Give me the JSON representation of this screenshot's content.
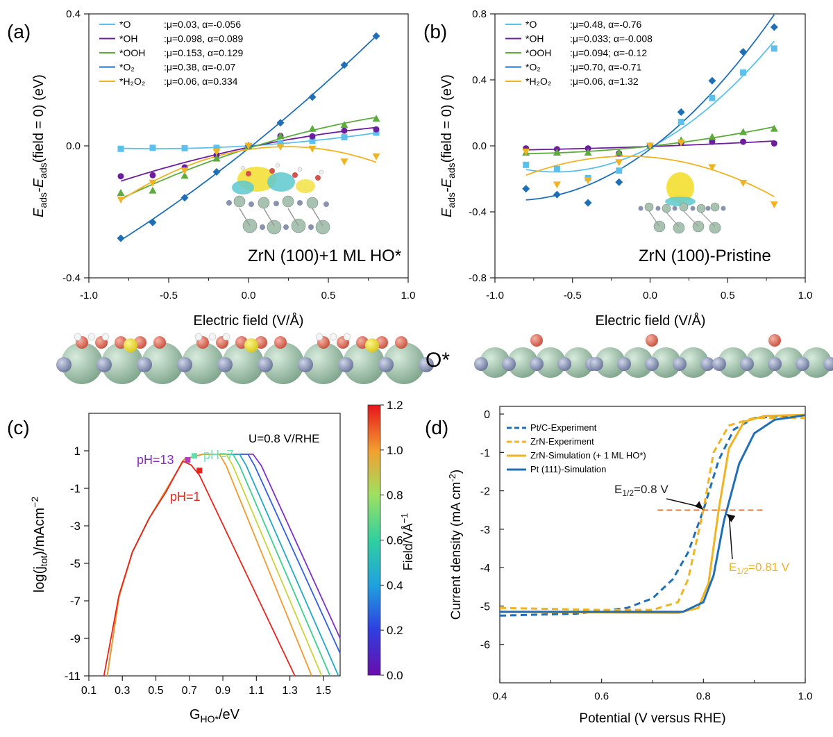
{
  "panels": {
    "a": {
      "letter": "(a)",
      "inset_label": "ZrN (100)+1 ML HO*",
      "xlabel": "Electric field (V/Å)",
      "ylabel_main": "E",
      "ylabel_sub1": "ads",
      "ylabel_mid": "-E",
      "ylabel_sub2": "ads",
      "ylabel_tail": "(field = 0) (eV)"
    },
    "b": {
      "letter": "(b)",
      "inset_label": "ZrN (100)-Pristine",
      "xlabel": "Electric field (V/Å)",
      "ylabel_main": "E",
      "ylabel_sub1": "ads",
      "ylabel_mid": "-E",
      "ylabel_sub2": "ads",
      "ylabel_tail": "(field = 0) (eV)"
    },
    "o_label": "O*",
    "c": {
      "letter": "(c)",
      "condition": "U=0.8 V/RHE",
      "xlabel": "G",
      "xlabel_sub": "HO*",
      "xlabel_tail": "/eV",
      "ylabel": "log(j",
      "ylabel_sub": "tot",
      "ylabel_tail": ")/mAcm",
      "ylabel_sup": "−2",
      "colorbar_label": "Field/VÅ",
      "colorbar_sup": "−1",
      "ph13": "pH=13",
      "ph7": "pH=7",
      "ph1": "pH=1"
    },
    "d": {
      "letter": "(d)",
      "xlabel": "Potential (V versus RHE)",
      "ylabel": "Current density (mA cm",
      "ylabel_sup": "-2",
      "ylabel_tail": ")",
      "ann1_pre": "E",
      "ann1_sub": "1/2",
      "ann1_tail": "=0.8 V",
      "ann2_pre": "E",
      "ann2_sub": "1/2",
      "ann2_tail": "=0.81 V"
    }
  },
  "chart_data": [
    {
      "id": "a",
      "type": "scatter",
      "xlabel": "Electric field (V/Å)",
      "ylabel": "Eads-Eads(field = 0) (eV)",
      "xlim": [
        -1.0,
        1.0
      ],
      "ylim": [
        -0.4,
        0.4
      ],
      "xticks": [
        -1.0,
        -0.5,
        0.0,
        0.5,
        1.0
      ],
      "yticks": [
        -0.4,
        0.0,
        0.4
      ],
      "x": [
        -0.8,
        -0.6,
        -0.4,
        -0.2,
        0.0,
        0.2,
        0.4,
        0.6,
        0.8
      ],
      "series": [
        {
          "name": "*O",
          "params": ":μ=0.03, α=-0.056",
          "color": "#5BC0EB",
          "marker": "square",
          "values": [
            -0.009,
            -0.006,
            -0.007,
            -0.006,
            0.0,
            0.007,
            0.015,
            0.026,
            0.04
          ]
        },
        {
          "name": "*OH",
          "params": ":μ=0.098, α=0.089",
          "color": "#6B1E9E",
          "marker": "circle",
          "values": [
            -0.092,
            -0.089,
            -0.065,
            -0.028,
            0.0,
            0.03,
            0.029,
            0.046,
            0.05
          ]
        },
        {
          "name": "*OOH",
          "params": ":μ=0.153, α=0.129",
          "color": "#5CAB3C",
          "marker": "triangle-up",
          "values": [
            -0.142,
            -0.135,
            -0.09,
            -0.038,
            0.0,
            0.03,
            0.052,
            0.064,
            0.083
          ]
        },
        {
          "name": "*O₂",
          "params": ":μ=0.38, α=-0.07",
          "color": "#1F6FB8",
          "marker": "diamond",
          "values": [
            -0.28,
            -0.232,
            -0.157,
            -0.079,
            0.0,
            0.07,
            0.148,
            0.245,
            0.333
          ]
        },
        {
          "name": "*H₂O₂",
          "params": ":μ=0.06, α=0.334",
          "color": "#F0B323",
          "marker": "triangle-down",
          "values": [
            -0.163,
            -0.112,
            -0.075,
            -0.018,
            0.0,
            -0.003,
            -0.009,
            -0.048,
            -0.032
          ]
        }
      ]
    },
    {
      "id": "b",
      "type": "scatter",
      "xlabel": "Electric field (V/Å)",
      "ylabel": "Eads-Eads(field = 0) (eV)",
      "xlim": [
        -1.0,
        1.0
      ],
      "ylim": [
        -0.8,
        0.8
      ],
      "xticks": [
        -1.0,
        -0.5,
        0.0,
        0.5,
        1.0
      ],
      "yticks": [
        -0.8,
        -0.4,
        0.0,
        0.4,
        0.8
      ],
      "x": [
        -0.8,
        -0.6,
        -0.4,
        -0.2,
        0.0,
        0.2,
        0.4,
        0.6,
        0.8
      ],
      "series": [
        {
          "name": "*O",
          "params": ":μ=0.48, α=-0.76",
          "color": "#5BC0EB",
          "marker": "square",
          "values": [
            -0.115,
            -0.14,
            -0.195,
            -0.15,
            0.0,
            0.145,
            0.29,
            0.445,
            0.59
          ]
        },
        {
          "name": "*OH",
          "params": ":μ=0.033; α=-0.008",
          "color": "#6B1E9E",
          "marker": "circle",
          "values": [
            -0.015,
            -0.02,
            -0.015,
            -0.045,
            0.0,
            0.02,
            0.025,
            0.025,
            0.015
          ]
        },
        {
          "name": "*OOH",
          "params": ":μ=0.094; α=-0.12",
          "color": "#5CAB3C",
          "marker": "triangle-up",
          "values": [
            -0.04,
            -0.04,
            -0.04,
            -0.04,
            0.0,
            0.035,
            0.055,
            0.085,
            0.105
          ]
        },
        {
          "name": "*O₂",
          "params": ":μ=0.70, α=-0.71",
          "color": "#1F6FB8",
          "marker": "diamond",
          "values": [
            -0.26,
            -0.295,
            -0.345,
            -0.22,
            0.0,
            0.205,
            0.395,
            0.57,
            0.72
          ]
        },
        {
          "name": "*H₂O₂",
          "params": ":μ=0.06, α=1.32",
          "color": "#F0B323",
          "marker": "triangle-down",
          "values": [
            -0.035,
            -0.235,
            -0.21,
            -0.1,
            0.0,
            0.02,
            -0.13,
            -0.225,
            -0.355
          ]
        }
      ]
    },
    {
      "id": "c",
      "type": "line",
      "xlabel": "GHO*/eV",
      "ylabel": "log(jtot)/mAcm−2",
      "xlim": [
        0.1,
        1.6
      ],
      "ylim": [
        -11,
        3
      ],
      "xticks": [
        0.1,
        0.3,
        0.5,
        0.7,
        0.9,
        1.1,
        1.3,
        1.5
      ],
      "yticks": [
        -11,
        -9,
        -7,
        -5,
        -3,
        -1,
        1
      ],
      "colorbar": {
        "label": "Field/VÅ−1",
        "range": [
          0.0,
          1.2
        ],
        "ticks": [
          0.0,
          0.2,
          0.4,
          0.6,
          0.8,
          1.0,
          1.2
        ]
      },
      "annotation": "U=0.8 V/RHE",
      "series": [
        {
          "field": 0.0,
          "color": "#7B2FC8",
          "points": [
            [
              0.21,
              -11
            ],
            [
              0.28,
              -6.8
            ],
            [
              0.36,
              -4.4
            ],
            [
              0.46,
              -2.6
            ],
            [
              0.56,
              -1.1
            ],
            [
              0.67,
              0.55
            ],
            [
              0.78,
              0.82
            ],
            [
              1.08,
              0.82
            ],
            [
              1.13,
              0.2
            ],
            [
              1.6,
              -9.0
            ]
          ]
        },
        {
          "field": 0.2,
          "color": "#2F5FE0",
          "points": [
            [
              0.21,
              -11
            ],
            [
              0.28,
              -6.8
            ],
            [
              0.36,
              -4.4
            ],
            [
              0.46,
              -2.6
            ],
            [
              0.56,
              -1.1
            ],
            [
              0.67,
              0.55
            ],
            [
              0.78,
              0.82
            ],
            [
              1.05,
              0.82
            ],
            [
              1.09,
              0.2
            ],
            [
              1.6,
              -9.8
            ]
          ]
        },
        {
          "field": 0.4,
          "color": "#1FA8C8",
          "points": [
            [
              0.21,
              -11
            ],
            [
              0.28,
              -6.8
            ],
            [
              0.36,
              -4.4
            ],
            [
              0.46,
              -2.6
            ],
            [
              0.56,
              -1.1
            ],
            [
              0.67,
              0.55
            ],
            [
              0.78,
              0.82
            ],
            [
              1.0,
              0.82
            ],
            [
              1.04,
              0.2
            ],
            [
              1.59,
              -11
            ]
          ]
        },
        {
          "field": 0.6,
          "color": "#3CD08C",
          "points": [
            [
              0.21,
              -11
            ],
            [
              0.28,
              -6.8
            ],
            [
              0.36,
              -4.4
            ],
            [
              0.46,
              -2.6
            ],
            [
              0.56,
              -1.1
            ],
            [
              0.67,
              0.55
            ],
            [
              0.78,
              0.82
            ],
            [
              0.96,
              0.82
            ],
            [
              1.0,
              0.2
            ],
            [
              1.54,
              -11
            ]
          ]
        },
        {
          "field": 0.8,
          "color": "#C9D43A",
          "points": [
            [
              0.21,
              -11
            ],
            [
              0.28,
              -6.8
            ],
            [
              0.36,
              -4.4
            ],
            [
              0.46,
              -2.6
            ],
            [
              0.56,
              -1.1
            ],
            [
              0.67,
              0.55
            ],
            [
              0.78,
              0.82
            ],
            [
              0.92,
              0.82
            ],
            [
              0.96,
              0.2
            ],
            [
              1.49,
              -11
            ]
          ]
        },
        {
          "field": 1.0,
          "color": "#F29A30",
          "points": [
            [
              0.21,
              -11
            ],
            [
              0.28,
              -6.8
            ],
            [
              0.36,
              -4.4
            ],
            [
              0.46,
              -2.6
            ],
            [
              0.56,
              -1.1
            ],
            [
              0.67,
              0.55
            ],
            [
              0.78,
              0.82
            ],
            [
              0.88,
              0.82
            ],
            [
              0.92,
              0.2
            ],
            [
              1.43,
              -11
            ]
          ]
        },
        {
          "field": 1.2,
          "color": "#E8231C",
          "points": [
            [
              0.19,
              -11
            ],
            [
              0.28,
              -6.7
            ],
            [
              0.36,
              -4.4
            ],
            [
              0.46,
              -2.6
            ],
            [
              0.56,
              -1.2
            ],
            [
              0.66,
              0.45
            ],
            [
              0.71,
              0.25
            ],
            [
              0.76,
              -0.3
            ],
            [
              1.33,
              -11
            ]
          ]
        }
      ],
      "markers": [
        {
          "label": "pH=13",
          "x": 0.69,
          "y": 0.52,
          "color": "#B040C0"
        },
        {
          "label": "pH=7",
          "x": 0.73,
          "y": 0.73,
          "color": "#60E0B0"
        },
        {
          "label": "pH=1",
          "x": 0.76,
          "y": -0.05,
          "color": "#E8231C"
        }
      ]
    },
    {
      "id": "d",
      "type": "line",
      "xlabel": "Potential (V versus RHE)",
      "ylabel": "Current density (mA cm-2)",
      "xlim": [
        0.4,
        1.0
      ],
      "ylim": [
        -7,
        0.2
      ],
      "xticks": [
        0.4,
        0.6,
        0.8,
        1.0
      ],
      "yticks": [
        0,
        -1,
        -2,
        -3,
        -4,
        -5,
        -6
      ],
      "series": [
        {
          "name": "Pt/C-Experiment",
          "color": "#1F6FB8",
          "dash": "dashed",
          "points": [
            [
              0.4,
              -5.25
            ],
            [
              0.55,
              -5.2
            ],
            [
              0.65,
              -5.05
            ],
            [
              0.7,
              -4.8
            ],
            [
              0.74,
              -4.3
            ],
            [
              0.77,
              -3.6
            ],
            [
              0.8,
              -2.5
            ],
            [
              0.83,
              -1.2
            ],
            [
              0.86,
              -0.4
            ],
            [
              0.9,
              -0.1
            ],
            [
              1.0,
              -0.02
            ]
          ]
        },
        {
          "name": "ZrN-Experiment",
          "color": "#F0B323",
          "dash": "dashed",
          "points": [
            [
              0.4,
              -5.05
            ],
            [
              0.6,
              -5.1
            ],
            [
              0.7,
              -5.1
            ],
            [
              0.75,
              -4.9
            ],
            [
              0.77,
              -4.3
            ],
            [
              0.8,
              -2.5
            ],
            [
              0.82,
              -1.0
            ],
            [
              0.85,
              -0.3
            ],
            [
              0.9,
              -0.1
            ],
            [
              1.0,
              -0.1
            ]
          ]
        },
        {
          "name": "ZrN-Simulation (+ 1 ML HO*)",
          "color": "#F0B323",
          "dash": "solid",
          "points": [
            [
              0.4,
              -5.15
            ],
            [
              0.75,
              -5.18
            ],
            [
              0.79,
              -5.05
            ],
            [
              0.81,
              -4.4
            ],
            [
              0.83,
              -2.5
            ],
            [
              0.85,
              -0.9
            ],
            [
              0.88,
              -0.2
            ],
            [
              0.92,
              -0.05
            ],
            [
              1.0,
              -0.02
            ]
          ]
        },
        {
          "name": "Pt (111)-Simulation",
          "color": "#1F6FB8",
          "dash": "solid",
          "points": [
            [
              0.4,
              -5.15
            ],
            [
              0.76,
              -5.15
            ],
            [
              0.8,
              -4.9
            ],
            [
              0.82,
              -4.2
            ],
            [
              0.84,
              -2.8
            ],
            [
              0.87,
              -1.3
            ],
            [
              0.9,
              -0.5
            ],
            [
              0.94,
              -0.15
            ],
            [
              1.0,
              -0.03
            ]
          ]
        }
      ],
      "annotations": [
        {
          "text": "E1/2=0.8 V",
          "x": 0.8,
          "y": -2.5,
          "color": "#222222"
        },
        {
          "text": "E1/2=0.81 V",
          "x": 0.845,
          "y": -2.6,
          "color": "#F0B323"
        }
      ],
      "reference_line": {
        "y": -2.5,
        "x_start": 0.71,
        "x_end": 0.92,
        "color": "#E0652D"
      }
    }
  ]
}
